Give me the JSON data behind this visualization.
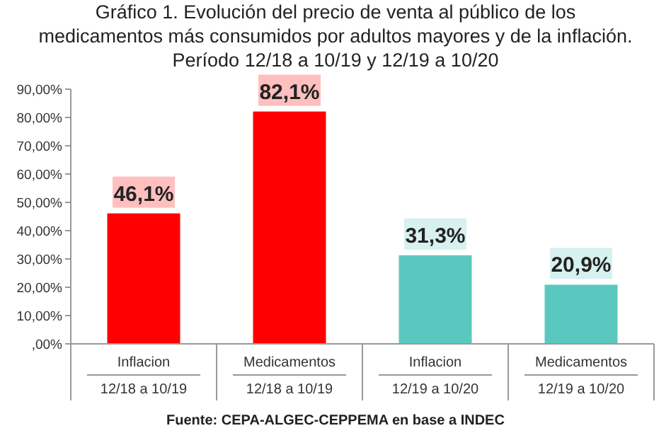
{
  "chart_data": {
    "type": "bar",
    "title": "Gráfico 1. Evolución del precio de venta al público de los medicamentos más consumidos por adultos mayores y de la inflación. Período 12/18 a 10/19 y 12/19 a 10/20",
    "categories": [
      "Inflacion\n12/18 a 10/19",
      "Medicamentos\n12/18 a 10/19",
      "Inflacion\n12/19 a 10/20",
      "Medicamentos\n12/19 a 10/20"
    ],
    "values": [
      46.1,
      82.1,
      31.3,
      20.9
    ],
    "colors": [
      "#ff0000",
      "#ff0000",
      "#5bc8c0",
      "#5bc8c0"
    ],
    "value_labels": [
      "46,1%",
      "82,1%",
      "31,3%",
      "20,9%"
    ],
    "ylim": [
      0,
      90
    ],
    "yticks": [
      {
        "value": 0,
        "label": ",00%"
      },
      {
        "value": 10,
        "label": "10,00%"
      },
      {
        "value": 20,
        "label": "20,00%"
      },
      {
        "value": 30,
        "label": "30,00%"
      },
      {
        "value": 40,
        "label": "40,00%"
      },
      {
        "value": 50,
        "label": "50,00%"
      },
      {
        "value": 60,
        "label": "60,00%"
      },
      {
        "value": 70,
        "label": "70,00%"
      },
      {
        "value": 80,
        "label": "80,00%"
      },
      {
        "value": 90,
        "label": "90,00%"
      }
    ],
    "grid": false,
    "annotations": [
      "Fuente: CEPA-ALGEC-CEPPEMA en base a INDEC"
    ]
  }
}
